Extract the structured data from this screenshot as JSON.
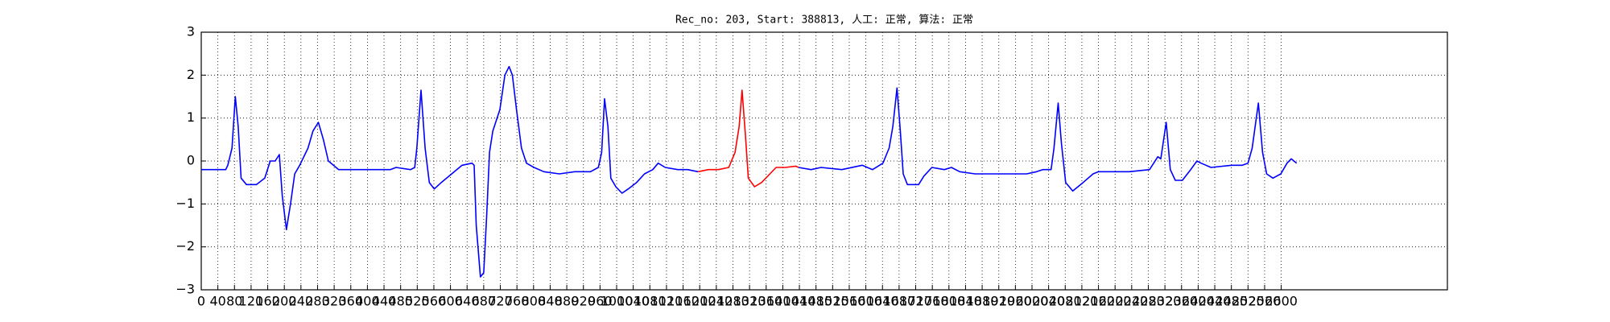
{
  "chart_data": {
    "type": "line",
    "title": "Rec_no: 203, Start: 388813, 人工: 正常, 算法: 正常",
    "xlim": [
      0,
      3000
    ],
    "ylim": [
      -3,
      3
    ],
    "grid": true,
    "xticks": [
      0,
      40,
      80,
      120,
      160,
      200,
      240,
      280,
      320,
      360,
      400,
      440,
      480,
      520,
      560,
      600,
      640,
      680,
      720,
      760,
      800,
      840,
      880,
      920,
      960,
      1000,
      1040,
      1080,
      1120,
      1160,
      1200,
      1240,
      1280,
      1320,
      1360,
      1400,
      1440,
      1480,
      1520,
      1560,
      1600,
      1640,
      1680,
      1720,
      1760,
      1800,
      1840,
      1880,
      1920,
      1960,
      2000,
      2040,
      2080,
      2120,
      2160,
      2200,
      2240,
      2280,
      2320,
      2360,
      2400,
      2440,
      2480,
      2520,
      2560,
      2600
    ],
    "yticks": [
      {
        "value": -3,
        "label": "−3"
      },
      {
        "value": -2,
        "label": "−2"
      },
      {
        "value": -1,
        "label": "−1"
      },
      0,
      1,
      2,
      3
    ],
    "series": [
      {
        "color": "#0000ff",
        "x": [
          0,
          59,
          64,
          74,
          82,
          89,
          96,
          109,
          133,
          153,
          166,
          178,
          188,
          195,
          205,
          215,
          225,
          237,
          257,
          269,
          282,
          294,
          306,
          331,
          381,
          455,
          469,
          504,
          514,
          519,
          529,
          539,
          549,
          561,
          578,
          603,
          628,
          652,
          657,
          662,
          672,
          680,
          687,
          694,
          702,
          719,
          731,
          741,
          749,
          759,
          771,
          783,
          801,
          825,
          862,
          899,
          937,
          956,
          964,
          971,
          979,
          986,
          998,
          1013,
          1028,
          1048,
          1067,
          1087,
          1100,
          1117,
          1147,
          1171,
          1196,
          1317,
          1438,
          1468,
          1492,
          1542,
          1591,
          1616,
          1641,
          1656,
          1665,
          1675,
          1683,
          1690,
          1700,
          1727,
          1740,
          1759,
          1789,
          1806,
          1826,
          1863,
          1913,
          1962,
          1987,
          2011,
          2026,
          2046,
          2053,
          2063,
          2071,
          2081,
          2098,
          2123,
          2147,
          2160,
          2197,
          2234,
          2283,
          2303,
          2310,
          2323,
          2333,
          2345,
          2362,
          2382,
          2397,
          2407,
          2431,
          2481,
          2506,
          2520,
          2530,
          2545,
          2555,
          2565,
          2580,
          2599,
          2614,
          2624,
          2637
        ],
        "values": [
          -0.2,
          -0.2,
          -0.1,
          0.3,
          1.5,
          0.8,
          -0.4,
          -0.55,
          -0.55,
          -0.4,
          0,
          0,
          0.15,
          -0.8,
          -1.6,
          -1.0,
          -0.3,
          -0.1,
          0.3,
          0.7,
          0.9,
          0.5,
          0,
          -0.2,
          -0.2,
          -0.2,
          -0.15,
          -0.2,
          -0.15,
          0.3,
          1.65,
          0.3,
          -0.5,
          -0.65,
          -0.5,
          -0.3,
          -0.1,
          -0.05,
          -0.1,
          -1.5,
          -2.7,
          -2.6,
          -1.3,
          0.2,
          0.7,
          1.2,
          2.0,
          2.2,
          2.0,
          1.2,
          0.3,
          -0.05,
          -0.15,
          -0.25,
          -0.3,
          -0.25,
          -0.25,
          -0.15,
          0.2,
          1.45,
          0.8,
          -0.4,
          -0.6,
          -0.75,
          -0.65,
          -0.5,
          -0.3,
          -0.2,
          -0.05,
          -0.15,
          -0.2,
          -0.2,
          -0.25,
          null,
          -0.15,
          -0.2,
          -0.15,
          -0.2,
          -0.1,
          -0.2,
          -0.05,
          0.3,
          0.8,
          1.7,
          0.7,
          -0.3,
          -0.55,
          -0.55,
          -0.35,
          -0.15,
          -0.2,
          -0.15,
          -0.25,
          -0.3,
          -0.3,
          -0.3,
          -0.3,
          -0.25,
          -0.2,
          -0.2,
          0.3,
          1.35,
          0.4,
          -0.5,
          -0.7,
          -0.5,
          -0.3,
          -0.25,
          -0.25,
          -0.25,
          -0.2,
          0.1,
          0.05,
          0.9,
          -0.2,
          -0.45,
          -0.45,
          -0.2,
          0,
          -0.05,
          -0.15,
          -0.1,
          -0.1,
          -0.05,
          0.3,
          1.35,
          0.2,
          -0.3,
          -0.4,
          -0.3,
          -0.05,
          0.05,
          -0.05
        ]
      },
      {
        "color": "#ff0000",
        "x": [
          1196,
          1221,
          1245,
          1270,
          1285,
          1295,
          1302,
          1310,
          1317,
          1332,
          1349,
          1369,
          1384,
          1406,
          1431,
          1438
        ],
        "values": [
          -0.25,
          -0.2,
          -0.2,
          -0.15,
          0.2,
          0.8,
          1.65,
          0.6,
          -0.4,
          -0.6,
          -0.5,
          -0.3,
          -0.15,
          -0.15,
          -0.12,
          -0.15
        ]
      }
    ]
  }
}
